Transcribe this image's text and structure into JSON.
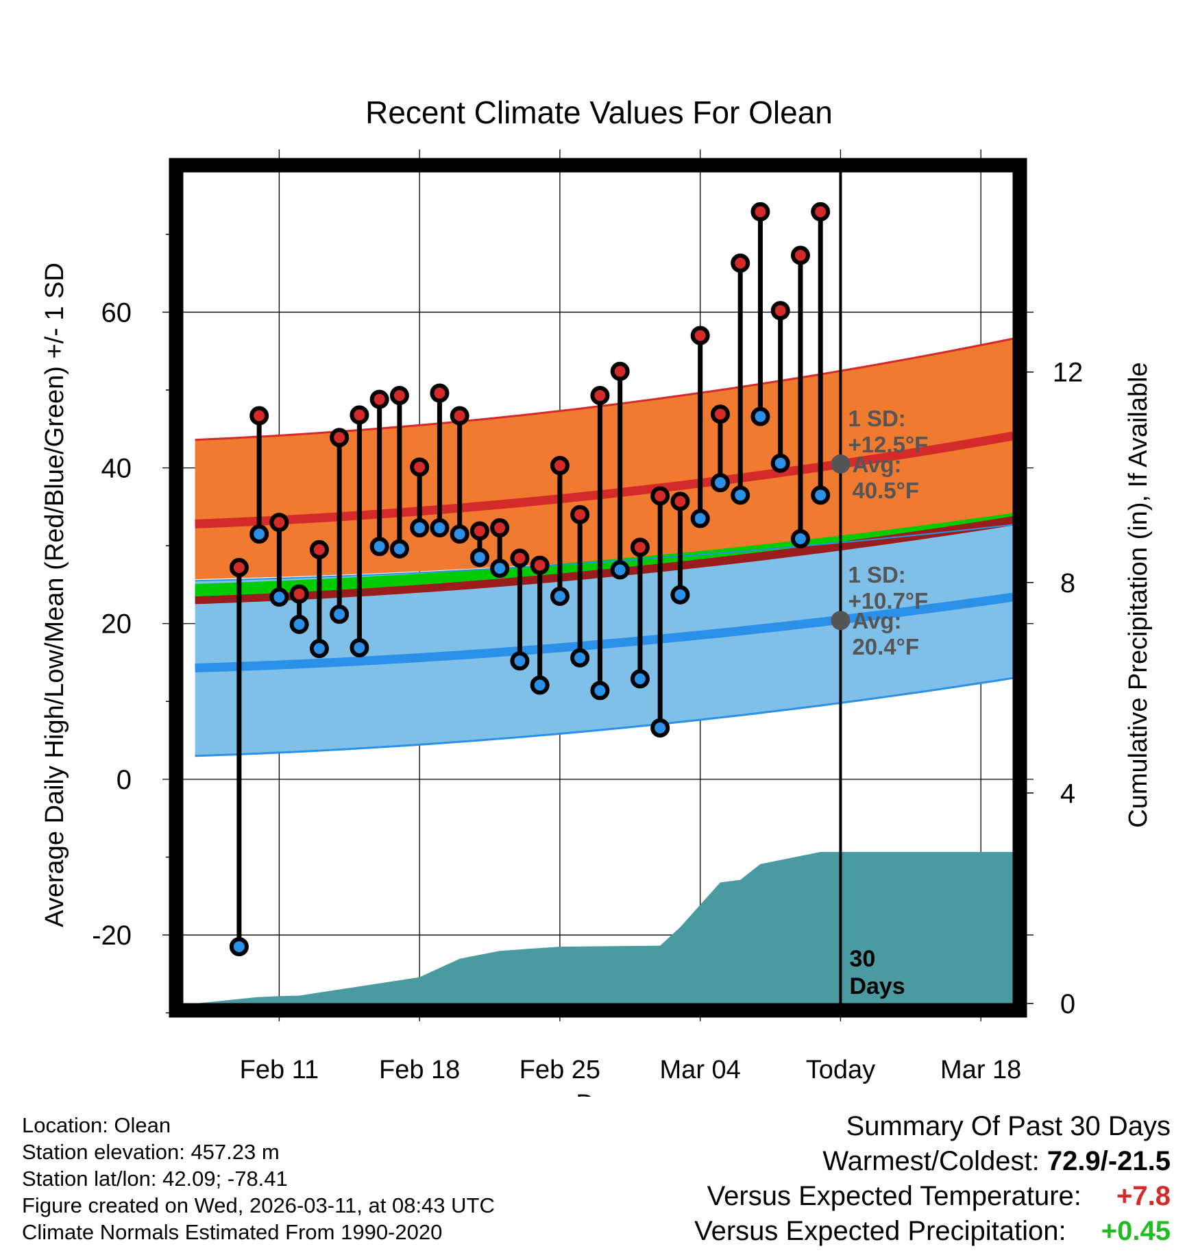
{
  "info": {
    "location": "Location: Olean",
    "elevation": "Station elevation: 457.23 m",
    "latlon": "Station lat/lon: 42.09; -78.41",
    "created": "Figure created on Wed, 2026-03-11, at 08:43 UTC",
    "normals": "Climate Normals Estimated From 1990-2020"
  },
  "summary": {
    "heading": "Summary Of Past 30 Days",
    "warm_cold_label": "Warmest/Coldest:",
    "warm_cold_value": "72.9/-21.5",
    "temp_label": "Versus Expected Temperature:",
    "temp_value": "+7.8",
    "temp_color": "#d42a2a",
    "precip_label": "Versus Expected Precipitation:",
    "precip_value": "+0.45",
    "precip_color": "#22bb22"
  },
  "chart_data": {
    "type": "line",
    "title": "Recent Climate Values For Olean",
    "xlabel": "Day",
    "ylabel": "Average Daily High/Low/Mean (Red/Blue/Green) +/- 1 SD",
    "y2label": "Cumulative Precipitation (in), If Available",
    "x_range_days": [
      -32.8,
      8.6
    ],
    "ylim": [
      -28.8,
      78
    ],
    "yticks": [
      -20,
      0,
      20,
      40,
      60
    ],
    "y2lim": [
      0,
      15.8
    ],
    "y2ticks": [
      0,
      4,
      8,
      12
    ],
    "xticks": [
      {
        "day": -28,
        "label": "Feb 11"
      },
      {
        "day": -21,
        "label": "Feb 18"
      },
      {
        "day": -14,
        "label": "Feb 25"
      },
      {
        "day": -7,
        "label": "Mar 04"
      },
      {
        "day": 0,
        "label": "Today"
      },
      {
        "day": 7,
        "label": "Mar 18"
      }
    ],
    "colors": {
      "high": "#d42a2a",
      "low": "#2a90e8",
      "mean": "#00cc00",
      "high_band": "#f07a30",
      "low_band": "#80c0e8",
      "precip": "#4a9aa2",
      "annotation": "#555555"
    },
    "normal_high": {
      "start": 32.8,
      "end": 44.1
    },
    "normal_high_sd_upper": {
      "start": 43.6,
      "end": 56.6
    },
    "normal_high_sd_lower": {
      "start": 25.7,
      "end": 32.7
    },
    "normal_low": {
      "start": 14.3,
      "end": 23.4
    },
    "normal_low_sd_upper": {
      "start": 25.5,
      "end": 32.7
    },
    "normal_low_sd_lower": {
      "start": 3.0,
      "end": 13.0
    },
    "normal_mean": {
      "start": 23.5,
      "end": 33.8
    },
    "normal_mean_below": {
      "start": 22.5,
      "end": 32.6
    },
    "days": [
      -30,
      -29,
      -28,
      -27,
      -26,
      -25,
      -24,
      -23,
      -22,
      -21,
      -20,
      -19,
      -18,
      -17,
      -16,
      -15,
      -14,
      -13,
      -12,
      -11,
      -10,
      -9,
      -8,
      -7,
      -6,
      -5,
      -4,
      -3,
      -2,
      -1
    ],
    "highs": [
      27.2,
      46.7,
      33.0,
      23.8,
      29.5,
      43.9,
      46.8,
      48.8,
      49.3,
      40.1,
      49.6,
      46.7,
      31.9,
      32.3,
      28.4,
      27.5,
      40.3,
      34.0,
      49.3,
      52.4,
      29.8,
      36.4,
      35.7,
      57.0,
      46.9,
      66.3,
      72.9,
      60.2,
      67.3,
      72.9
    ],
    "lows": [
      -21.5,
      31.5,
      23.4,
      19.9,
      16.8,
      21.2,
      16.9,
      29.9,
      29.6,
      32.3,
      32.3,
      31.5,
      28.5,
      27.1,
      15.2,
      12.1,
      23.5,
      15.6,
      11.4,
      26.9,
      12.9,
      6.6,
      23.7,
      33.5,
      38.1,
      36.5,
      46.6,
      40.6,
      30.9,
      36.5
    ],
    "precip_cum_steps": [
      {
        "day": -32.2,
        "value": 0.0
      },
      {
        "day": -29.1,
        "value": 0.12
      },
      {
        "day": -28.0,
        "value": 0.14
      },
      {
        "day": -27.0,
        "value": 0.15
      },
      {
        "day": -21.0,
        "value": 0.5
      },
      {
        "day": -19.0,
        "value": 0.85
      },
      {
        "day": -17.0,
        "value": 1.0
      },
      {
        "day": -14.0,
        "value": 1.08
      },
      {
        "day": -9.0,
        "value": 1.1
      },
      {
        "day": -8.0,
        "value": 1.45
      },
      {
        "day": -6.0,
        "value": 2.3
      },
      {
        "day": -5.0,
        "value": 2.35
      },
      {
        "day": -4.0,
        "value": 2.65
      },
      {
        "day": -1.0,
        "value": 2.88
      },
      {
        "day": 8.6,
        "value": 2.88
      }
    ],
    "today_annotations": {
      "high_sd_line1": "1 SD:",
      "high_sd_line2": "+12.5°F",
      "high_avg_line1": "Avg:",
      "high_avg_line2": "40.5°F",
      "high_avg_value": 40.5,
      "low_sd_line1": "1 SD:",
      "low_sd_line2": "+10.7°F",
      "low_avg_line1": "Avg:",
      "low_avg_line2": "20.4°F",
      "low_avg_value": 20.4,
      "days_line1": "30",
      "days_line2": "Days"
    }
  }
}
